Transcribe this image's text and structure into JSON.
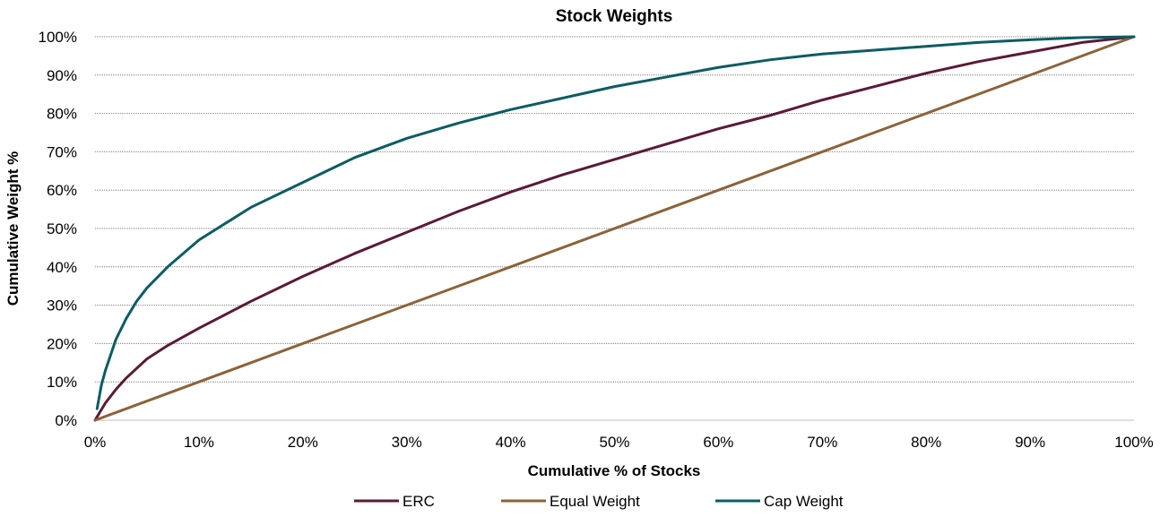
{
  "chart_data": {
    "type": "line",
    "title": "Stock Weights",
    "xlabel": "Cumulative % of Stocks",
    "ylabel": "Cumulative Weight %",
    "xlim": [
      0,
      100
    ],
    "ylim": [
      0,
      100
    ],
    "x_ticks": [
      "0%",
      "10%",
      "20%",
      "30%",
      "40%",
      "50%",
      "60%",
      "70%",
      "80%",
      "90%",
      "100%"
    ],
    "y_ticks": [
      "0%",
      "10%",
      "20%",
      "30%",
      "40%",
      "50%",
      "60%",
      "70%",
      "80%",
      "90%",
      "100%"
    ],
    "grid": "horizontal",
    "legend_position": "bottom",
    "series": [
      {
        "name": "ERC",
        "color": "#5a1a37",
        "x": [
          0,
          1,
          2,
          3,
          5,
          7,
          10,
          15,
          20,
          25,
          30,
          35,
          40,
          45,
          50,
          55,
          60,
          65,
          70,
          75,
          80,
          85,
          90,
          95,
          100
        ],
        "y": [
          0,
          4.5,
          8,
          11,
          16,
          19.5,
          24,
          31,
          37.5,
          43.5,
          49,
          54.5,
          59.5,
          64,
          68,
          72,
          76,
          79.5,
          83.5,
          87,
          90.5,
          93.5,
          96,
          98.5,
          100
        ]
      },
      {
        "name": "Equal Weight",
        "color": "#8c6239",
        "x": [
          0,
          100
        ],
        "y": [
          0,
          100
        ]
      },
      {
        "name": "Cap Weight",
        "color": "#0d5c63",
        "x": [
          0.2,
          0.6,
          1,
          2,
          3,
          4,
          5,
          7,
          10,
          15,
          20,
          25,
          30,
          35,
          40,
          45,
          50,
          55,
          60,
          65,
          70,
          75,
          80,
          85,
          90,
          95,
          100
        ],
        "y": [
          3,
          9,
          13,
          21,
          26.5,
          31,
          34.5,
          40,
          47,
          55.5,
          62,
          68.5,
          73.5,
          77.5,
          81,
          84,
          87,
          89.5,
          92,
          94,
          95.5,
          96.5,
          97.5,
          98.5,
          99.2,
          99.8,
          100
        ]
      }
    ]
  }
}
